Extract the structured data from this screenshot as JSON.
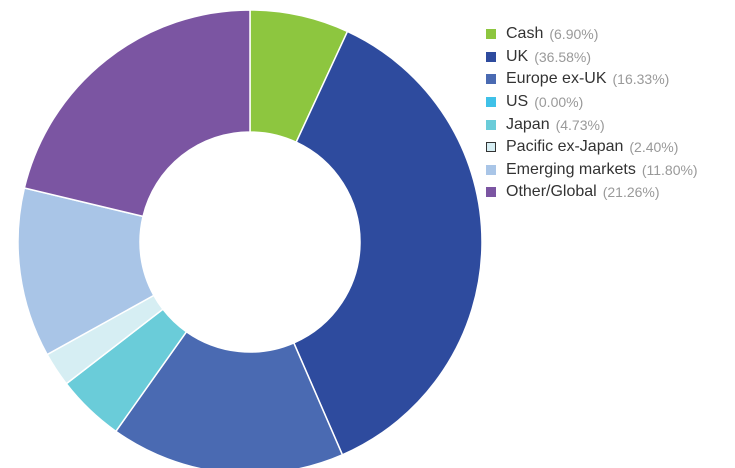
{
  "chart_data": {
    "type": "pie",
    "variant": "donut",
    "legend_position": "right",
    "slices": [
      {
        "label": "Cash",
        "value": 6.9,
        "display": "(6.90%)",
        "color": "#8dc63f"
      },
      {
        "label": "UK",
        "value": 36.58,
        "display": "(36.58%)",
        "color": "#2e4b9e"
      },
      {
        "label": "Europe ex-UK",
        "value": 16.33,
        "display": "(16.33%)",
        "color": "#4a6ab2"
      },
      {
        "label": "US",
        "value": 0.0,
        "display": "(0.00%)",
        "color": "#3fc1e8"
      },
      {
        "label": "Japan",
        "value": 4.73,
        "display": "(4.73%)",
        "color": "#6accd9"
      },
      {
        "label": "Pacific ex-Japan",
        "value": 2.4,
        "display": "(2.40%)",
        "color": "#d6eef3"
      },
      {
        "label": "Emerging markets",
        "value": 11.8,
        "display": "(11.80%)",
        "color": "#a9c5e7"
      },
      {
        "label": "Other/Global",
        "value": 21.26,
        "display": "(21.26%)",
        "color": "#7b55a2"
      }
    ]
  }
}
